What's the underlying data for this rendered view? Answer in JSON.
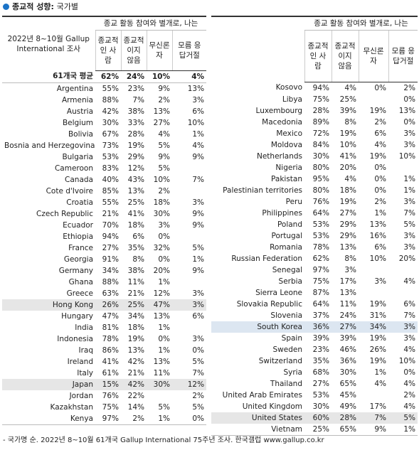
{
  "title": "종교적 성향",
  "subtitle": "국가별",
  "header": {
    "period": "2022년 8~10월 Gallup International 조사",
    "group_label": "종교 활동 참여와 별개로, 나는",
    "columns": [
      "종교적인 사람",
      "종교적이지 않음",
      "무신론자",
      "모름 응답거절"
    ]
  },
  "left": {
    "average": {
      "country": "61개국 평균",
      "values": [
        "62%",
        "24%",
        "10%",
        "4%"
      ]
    },
    "rows": [
      {
        "country": "Argentina",
        "values": [
          "55%",
          "23%",
          "9%",
          "13%"
        ]
      },
      {
        "country": "Armenia",
        "values": [
          "88%",
          "7%",
          "2%",
          "3%"
        ]
      },
      {
        "country": "Austria",
        "values": [
          "42%",
          "38%",
          "13%",
          "6%"
        ]
      },
      {
        "country": "Belgium",
        "values": [
          "30%",
          "33%",
          "27%",
          "10%"
        ]
      },
      {
        "country": "Bolivia",
        "values": [
          "67%",
          "28%",
          "4%",
          "1%"
        ]
      },
      {
        "country": "Bosnia and Herzegovina",
        "values": [
          "73%",
          "19%",
          "5%",
          "4%"
        ]
      },
      {
        "country": "Bulgaria",
        "values": [
          "53%",
          "29%",
          "9%",
          "9%"
        ]
      },
      {
        "country": "Cameroon",
        "values": [
          "83%",
          "12%",
          "5%",
          null
        ]
      },
      {
        "country": "Canada",
        "values": [
          "40%",
          "43%",
          "10%",
          "7%"
        ]
      },
      {
        "country": "Cote d'Ivoire",
        "values": [
          "85%",
          "13%",
          "2%",
          null
        ]
      },
      {
        "country": "Croatia",
        "values": [
          "55%",
          "25%",
          "18%",
          "3%"
        ]
      },
      {
        "country": "Czech Republic",
        "values": [
          "21%",
          "41%",
          "30%",
          "9%"
        ]
      },
      {
        "country": "Ecuador",
        "values": [
          "70%",
          "18%",
          "3%",
          "9%"
        ]
      },
      {
        "country": "Ethiopia",
        "values": [
          "94%",
          "6%",
          "0%",
          null
        ]
      },
      {
        "country": "France",
        "values": [
          "27%",
          "35%",
          "32%",
          "5%"
        ]
      },
      {
        "country": "Georgia",
        "values": [
          "91%",
          "8%",
          "0%",
          "1%"
        ]
      },
      {
        "country": "Germany",
        "values": [
          "34%",
          "38%",
          "20%",
          "9%"
        ]
      },
      {
        "country": "Ghana",
        "values": [
          "88%",
          "11%",
          "1%",
          null
        ]
      },
      {
        "country": "Greece",
        "values": [
          "63%",
          "21%",
          "12%",
          "3%"
        ]
      },
      {
        "country": "Hong Kong",
        "values": [
          "26%",
          "25%",
          "47%",
          "3%"
        ],
        "highlight": "#e6e6e6"
      },
      {
        "country": "Hungary",
        "values": [
          "47%",
          "34%",
          "13%",
          "6%"
        ]
      },
      {
        "country": "India",
        "values": [
          "81%",
          "18%",
          "1%",
          null
        ]
      },
      {
        "country": "Indonesia",
        "values": [
          "78%",
          "19%",
          "0%",
          "3%"
        ]
      },
      {
        "country": "Iraq",
        "values": [
          "86%",
          "13%",
          "1%",
          "0%"
        ]
      },
      {
        "country": "Ireland",
        "values": [
          "41%",
          "42%",
          "13%",
          "5%"
        ]
      },
      {
        "country": "Italy",
        "values": [
          "61%",
          "21%",
          "11%",
          "7%"
        ]
      },
      {
        "country": "Japan",
        "values": [
          "15%",
          "42%",
          "30%",
          "12%"
        ],
        "highlight": "#e6e6e6"
      },
      {
        "country": "Jordan",
        "values": [
          "76%",
          "22%",
          null,
          "2%"
        ]
      },
      {
        "country": "Kazakhstan",
        "values": [
          "75%",
          "14%",
          "5%",
          "5%"
        ]
      },
      {
        "country": "Kenya",
        "values": [
          "97%",
          "2%",
          "1%",
          "0%"
        ]
      }
    ]
  },
  "right": {
    "rows": [
      {
        "country": "Kosovo",
        "values": [
          "94%",
          "4%",
          "0%",
          "2%"
        ]
      },
      {
        "country": "Libya",
        "values": [
          "75%",
          "25%",
          null,
          "0%"
        ]
      },
      {
        "country": "Luxembourg",
        "values": [
          "28%",
          "39%",
          "19%",
          "13%"
        ]
      },
      {
        "country": "Macedonia",
        "values": [
          "89%",
          "8%",
          "2%",
          "0%"
        ]
      },
      {
        "country": "Mexico",
        "values": [
          "72%",
          "19%",
          "6%",
          "3%"
        ]
      },
      {
        "country": "Moldova",
        "values": [
          "84%",
          "10%",
          "4%",
          "3%"
        ]
      },
      {
        "country": "Netherlands",
        "values": [
          "30%",
          "41%",
          "19%",
          "10%"
        ]
      },
      {
        "country": "Nigeria",
        "values": [
          "80%",
          "20%",
          "0%",
          null
        ]
      },
      {
        "country": "Pakistan",
        "values": [
          "95%",
          "4%",
          "0%",
          "1%"
        ]
      },
      {
        "country": "Palestinian territories",
        "values": [
          "80%",
          "18%",
          "0%",
          "1%"
        ]
      },
      {
        "country": "Peru",
        "values": [
          "76%",
          "19%",
          "2%",
          "3%"
        ]
      },
      {
        "country": "Philippines",
        "values": [
          "64%",
          "27%",
          "1%",
          "7%"
        ]
      },
      {
        "country": "Poland",
        "values": [
          "53%",
          "29%",
          "13%",
          "5%"
        ]
      },
      {
        "country": "Portugal",
        "values": [
          "53%",
          "29%",
          "16%",
          "3%"
        ]
      },
      {
        "country": "Romania",
        "values": [
          "78%",
          "13%",
          "6%",
          "3%"
        ]
      },
      {
        "country": "Russian Federation",
        "values": [
          "62%",
          "8%",
          "10%",
          "20%"
        ]
      },
      {
        "country": "Senegal",
        "values": [
          "97%",
          "3%",
          null,
          null
        ]
      },
      {
        "country": "Serbia",
        "values": [
          "75%",
          "17%",
          "3%",
          "4%"
        ]
      },
      {
        "country": "Sierra Leone",
        "values": [
          "87%",
          "13%",
          null,
          null
        ]
      },
      {
        "country": "Slovakia Republic",
        "values": [
          "64%",
          "11%",
          "19%",
          "6%"
        ]
      },
      {
        "country": "Slovenia",
        "values": [
          "37%",
          "24%",
          "31%",
          "7%"
        ]
      },
      {
        "country": "South Korea",
        "values": [
          "36%",
          "27%",
          "34%",
          "3%"
        ],
        "highlight": "#dce6f1"
      },
      {
        "country": "Spain",
        "values": [
          "39%",
          "39%",
          "19%",
          "3%"
        ]
      },
      {
        "country": "Sweden",
        "values": [
          "23%",
          "46%",
          "26%",
          "4%"
        ]
      },
      {
        "country": "Switzerland",
        "values": [
          "35%",
          "36%",
          "19%",
          "10%"
        ]
      },
      {
        "country": "Syria",
        "values": [
          "68%",
          "30%",
          "1%",
          "0%"
        ]
      },
      {
        "country": "Thailand",
        "values": [
          "27%",
          "65%",
          "4%",
          "4%"
        ]
      },
      {
        "country": "United Arab Emirates",
        "values": [
          "53%",
          "45%",
          null,
          "2%"
        ]
      },
      {
        "country": "United Kingdom",
        "values": [
          "30%",
          "49%",
          "17%",
          "4%"
        ]
      },
      {
        "country": "United States",
        "values": [
          "60%",
          "28%",
          "7%",
          "5%"
        ],
        "highlight": "#e6e6e6"
      },
      {
        "country": "Vietnam",
        "values": [
          "25%",
          "65%",
          "9%",
          "1%"
        ]
      }
    ]
  },
  "footnote": "- 국가명 순. 2022년 8~10월 61개국 Gallup International 75주년 조사. 한국갤럽 www.gallup.co.kr"
}
